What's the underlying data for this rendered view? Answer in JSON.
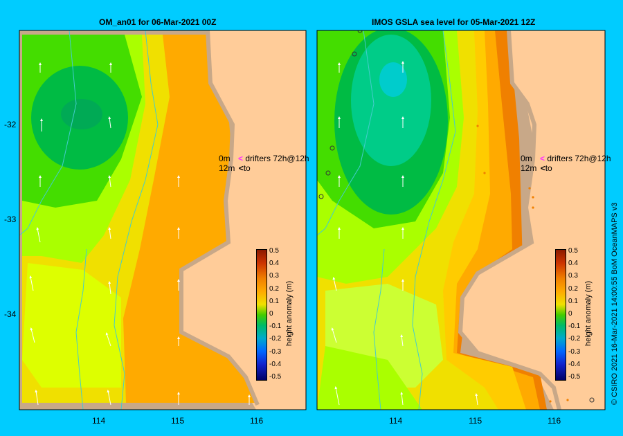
{
  "panels": [
    {
      "title": "OM_an01  for 06-Mar-2021 00Z"
    },
    {
      "title": "IMOS GSLA sea level  for 05-Mar-2021 12Z"
    }
  ],
  "legend": {
    "line1_left": "0m",
    "line1_right": "drifters 72h@12h",
    "line2_left": "12m",
    "line2_right": "to"
  },
  "colorbar": {
    "label": "height anomaly (m)",
    "ticks": [
      "0.5",
      "0.4",
      "0.3",
      "0.2",
      "0.1",
      "0",
      "-0.1",
      "-0.2",
      "-0.3",
      "-0.4",
      "-0.5"
    ]
  },
  "axes": {
    "lat_ticks": [
      "-32",
      "-33",
      "-34"
    ],
    "lon_ticks": [
      "114",
      "115",
      "116"
    ]
  },
  "credit": "© CSIRO 2021  16-Mar-2021 14:00:55 BoM OceanMAPS v3",
  "colors": {
    "background": "#00ccff",
    "land": "#ffcc99",
    "coast_shelf": "#c8a888",
    "isobath": "#44cccc",
    "drifter_marker": "#ff33ff"
  }
}
